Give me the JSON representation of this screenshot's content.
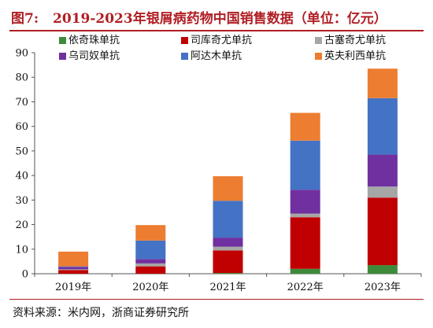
{
  "figure": {
    "label": "图7:",
    "title": "2019-2023年银屑病药物中国销售数据（单位：亿元）"
  },
  "source": "资料来源：米内网，浙商证券研究所",
  "chart_data": {
    "type": "bar",
    "stacked": true,
    "title": "2019-2023年银屑病药物中国销售数据（单位：亿元）",
    "xlabel": "",
    "ylabel": "",
    "ylim": [
      0,
      90
    ],
    "yticks": [
      0,
      10,
      20,
      30,
      40,
      50,
      60,
      70,
      80,
      90
    ],
    "grid": false,
    "legend_position": "top",
    "categories": [
      "2019年",
      "2020年",
      "2021年",
      "2022年",
      "2023年"
    ],
    "series": [
      {
        "name": "依奇珠单抗",
        "color": "#3f8a3a",
        "values": [
          0,
          0,
          0.3,
          2.0,
          3.5
        ]
      },
      {
        "name": "司库奇尤单抗",
        "color": "#c00000",
        "values": [
          1.5,
          3.0,
          9.2,
          21.0,
          27.5
        ]
      },
      {
        "name": "古塞奇尤单抗",
        "color": "#a6a6a6",
        "values": [
          0.3,
          1.2,
          1.5,
          1.5,
          4.5
        ]
      },
      {
        "name": "乌司奴单抗",
        "color": "#7030a0",
        "values": [
          1.0,
          1.8,
          3.7,
          9.7,
          13.0
        ]
      },
      {
        "name": "阿达木单抗",
        "color": "#4472c4",
        "values": [
          0.2,
          7.5,
          15.0,
          20.0,
          23.0
        ]
      },
      {
        "name": "英夫利西单抗",
        "color": "#ed7d31",
        "values": [
          6.0,
          6.3,
          10.0,
          11.3,
          12.0
        ]
      }
    ]
  }
}
